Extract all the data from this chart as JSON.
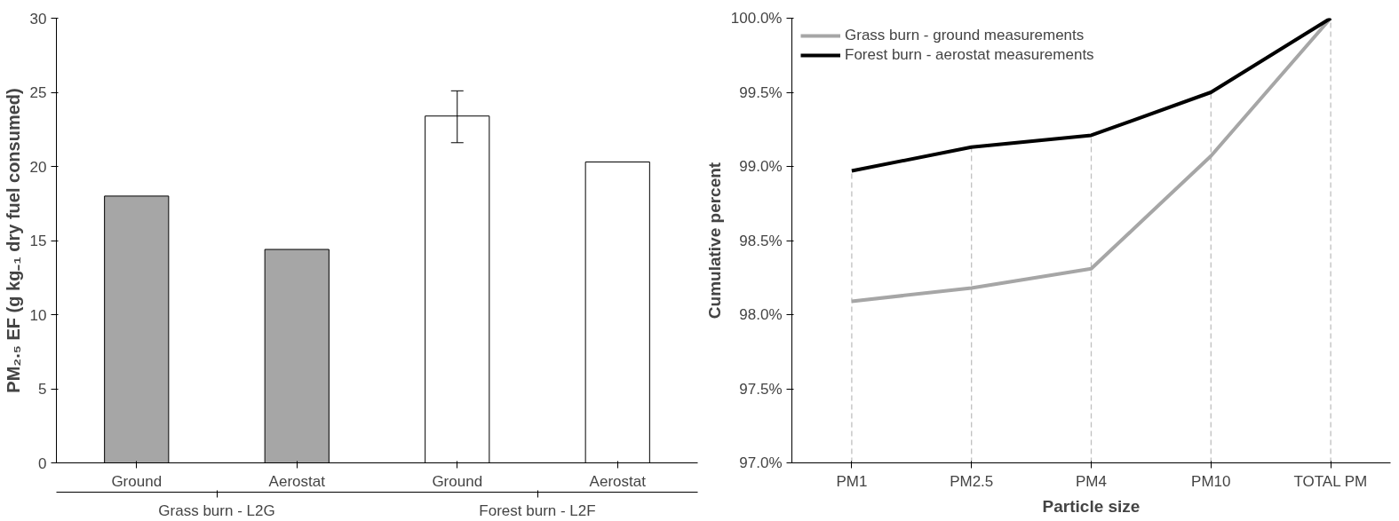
{
  "chart_data": [
    {
      "type": "bar",
      "ylabel": "PM₂.₅ EF (g kg₋₁ dry fuel consumed)",
      "categories": [
        "Ground",
        "Aerostat",
        "Ground",
        "Aerostat"
      ],
      "values": [
        18.0,
        14.4,
        23.4,
        20.3
      ],
      "colors": [
        "#a6a6a6",
        "#a6a6a6",
        "#ffffff",
        "#ffffff"
      ],
      "errors": [
        null,
        null,
        [
          21.6,
          25.1
        ],
        null
      ],
      "ylim": [
        0,
        30
      ],
      "yticks": [
        0,
        5,
        10,
        15,
        20,
        25,
        30
      ],
      "grid": false,
      "annotations": [
        "Grass burn - L2G",
        "Forest burn - L2F"
      ]
    },
    {
      "type": "line",
      "xlabel": "Particle size",
      "ylabel": "Cumulative percent",
      "categories": [
        "PM1",
        "PM2.5",
        "PM4",
        "PM10",
        "TOTAL PM"
      ],
      "series": [
        {
          "name": "Grass burn - ground measurements",
          "color": "#a6a6a6",
          "values": [
            98.09,
            98.18,
            98.31,
            99.07,
            100.0
          ]
        },
        {
          "name": "Forest burn - aerostat measurements",
          "color": "#000000",
          "values": [
            98.97,
            99.13,
            99.21,
            99.5,
            100.0
          ]
        }
      ],
      "ylim": [
        97,
        100
      ],
      "yticks": [
        {
          "value": 97,
          "label": "97.0%"
        },
        {
          "value": 97.5,
          "label": "97.5%"
        },
        {
          "value": 98,
          "label": "98.0%"
        },
        {
          "value": 98.5,
          "label": "98.5%"
        },
        {
          "value": 99,
          "label": "99.0%"
        },
        {
          "value": 99.5,
          "label": "99.5%"
        },
        {
          "value": 100,
          "label": "100.0%"
        }
      ],
      "ref_lines": [
        {
          "axis": "x",
          "value": "PM1",
          "color": "#bfbfbf",
          "line_style": "dashed"
        },
        {
          "axis": "x",
          "value": "PM2.5",
          "color": "#bfbfbf",
          "line_style": "dashed"
        },
        {
          "axis": "x",
          "value": "PM4",
          "color": "#bfbfbf",
          "line_style": "dashed"
        },
        {
          "axis": "x",
          "value": "PM10",
          "color": "#bfbfbf",
          "line_style": "dashed"
        },
        {
          "axis": "x",
          "value": "TOTAL PM",
          "color": "#bfbfbf",
          "line_style": "dashed"
        }
      ],
      "grid": false,
      "legend": "top left"
    }
  ]
}
